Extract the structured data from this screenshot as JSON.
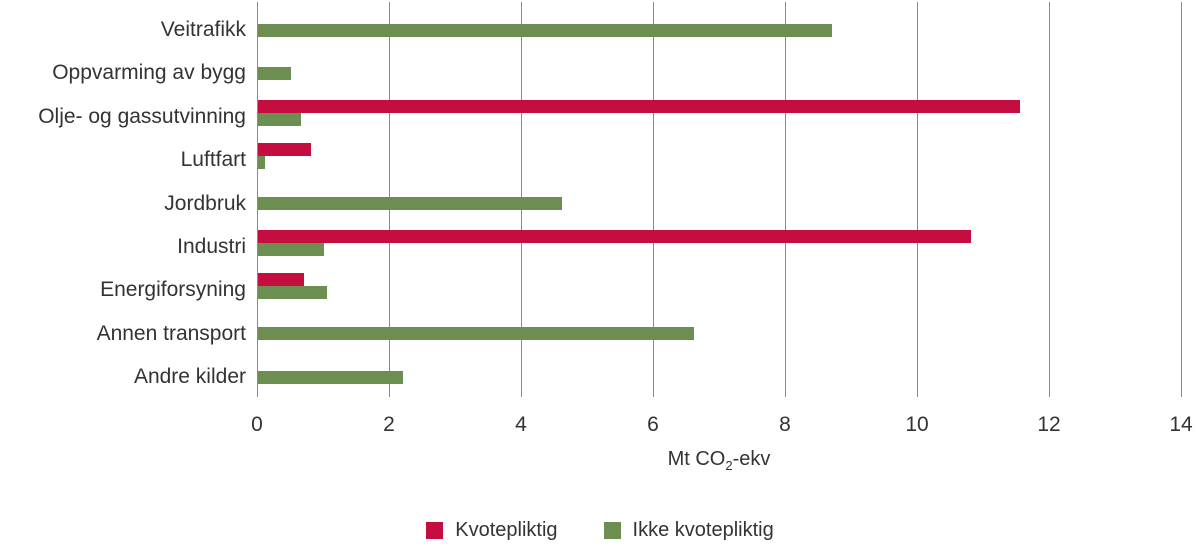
{
  "chart_data": {
    "type": "bar",
    "orientation": "horizontal",
    "title": "",
    "xlabel": {
      "prefix": "Mt CO",
      "sub": "2",
      "suffix": "-ekv"
    },
    "ylabel": "",
    "xlim": [
      0,
      14
    ],
    "xticks": [
      0,
      2,
      4,
      6,
      8,
      10,
      12,
      14
    ],
    "grid": "vertical",
    "legend_position": "bottom",
    "categories": [
      "Veitrafikk",
      "Oppvarming av bygg",
      "Olje- og gassutvinning",
      "Luftfart",
      "Jordbruk",
      "Industri",
      "Energiforsyning",
      "Annen transport",
      "Andre kilder"
    ],
    "series": [
      {
        "name": "Kvotepliktig",
        "color": "#C50E3F",
        "values": [
          0,
          0,
          11.55,
          0.8,
          0,
          10.8,
          0.7,
          0,
          0
        ]
      },
      {
        "name": "Ikke kvotepliktig",
        "color": "#6C8E50",
        "values": [
          8.7,
          0.5,
          0.65,
          0.1,
          4.6,
          1.0,
          1.05,
          6.6,
          2.2
        ]
      }
    ]
  },
  "axis": {
    "tick_color": "#8b8b8b",
    "text_color": "#333333"
  }
}
